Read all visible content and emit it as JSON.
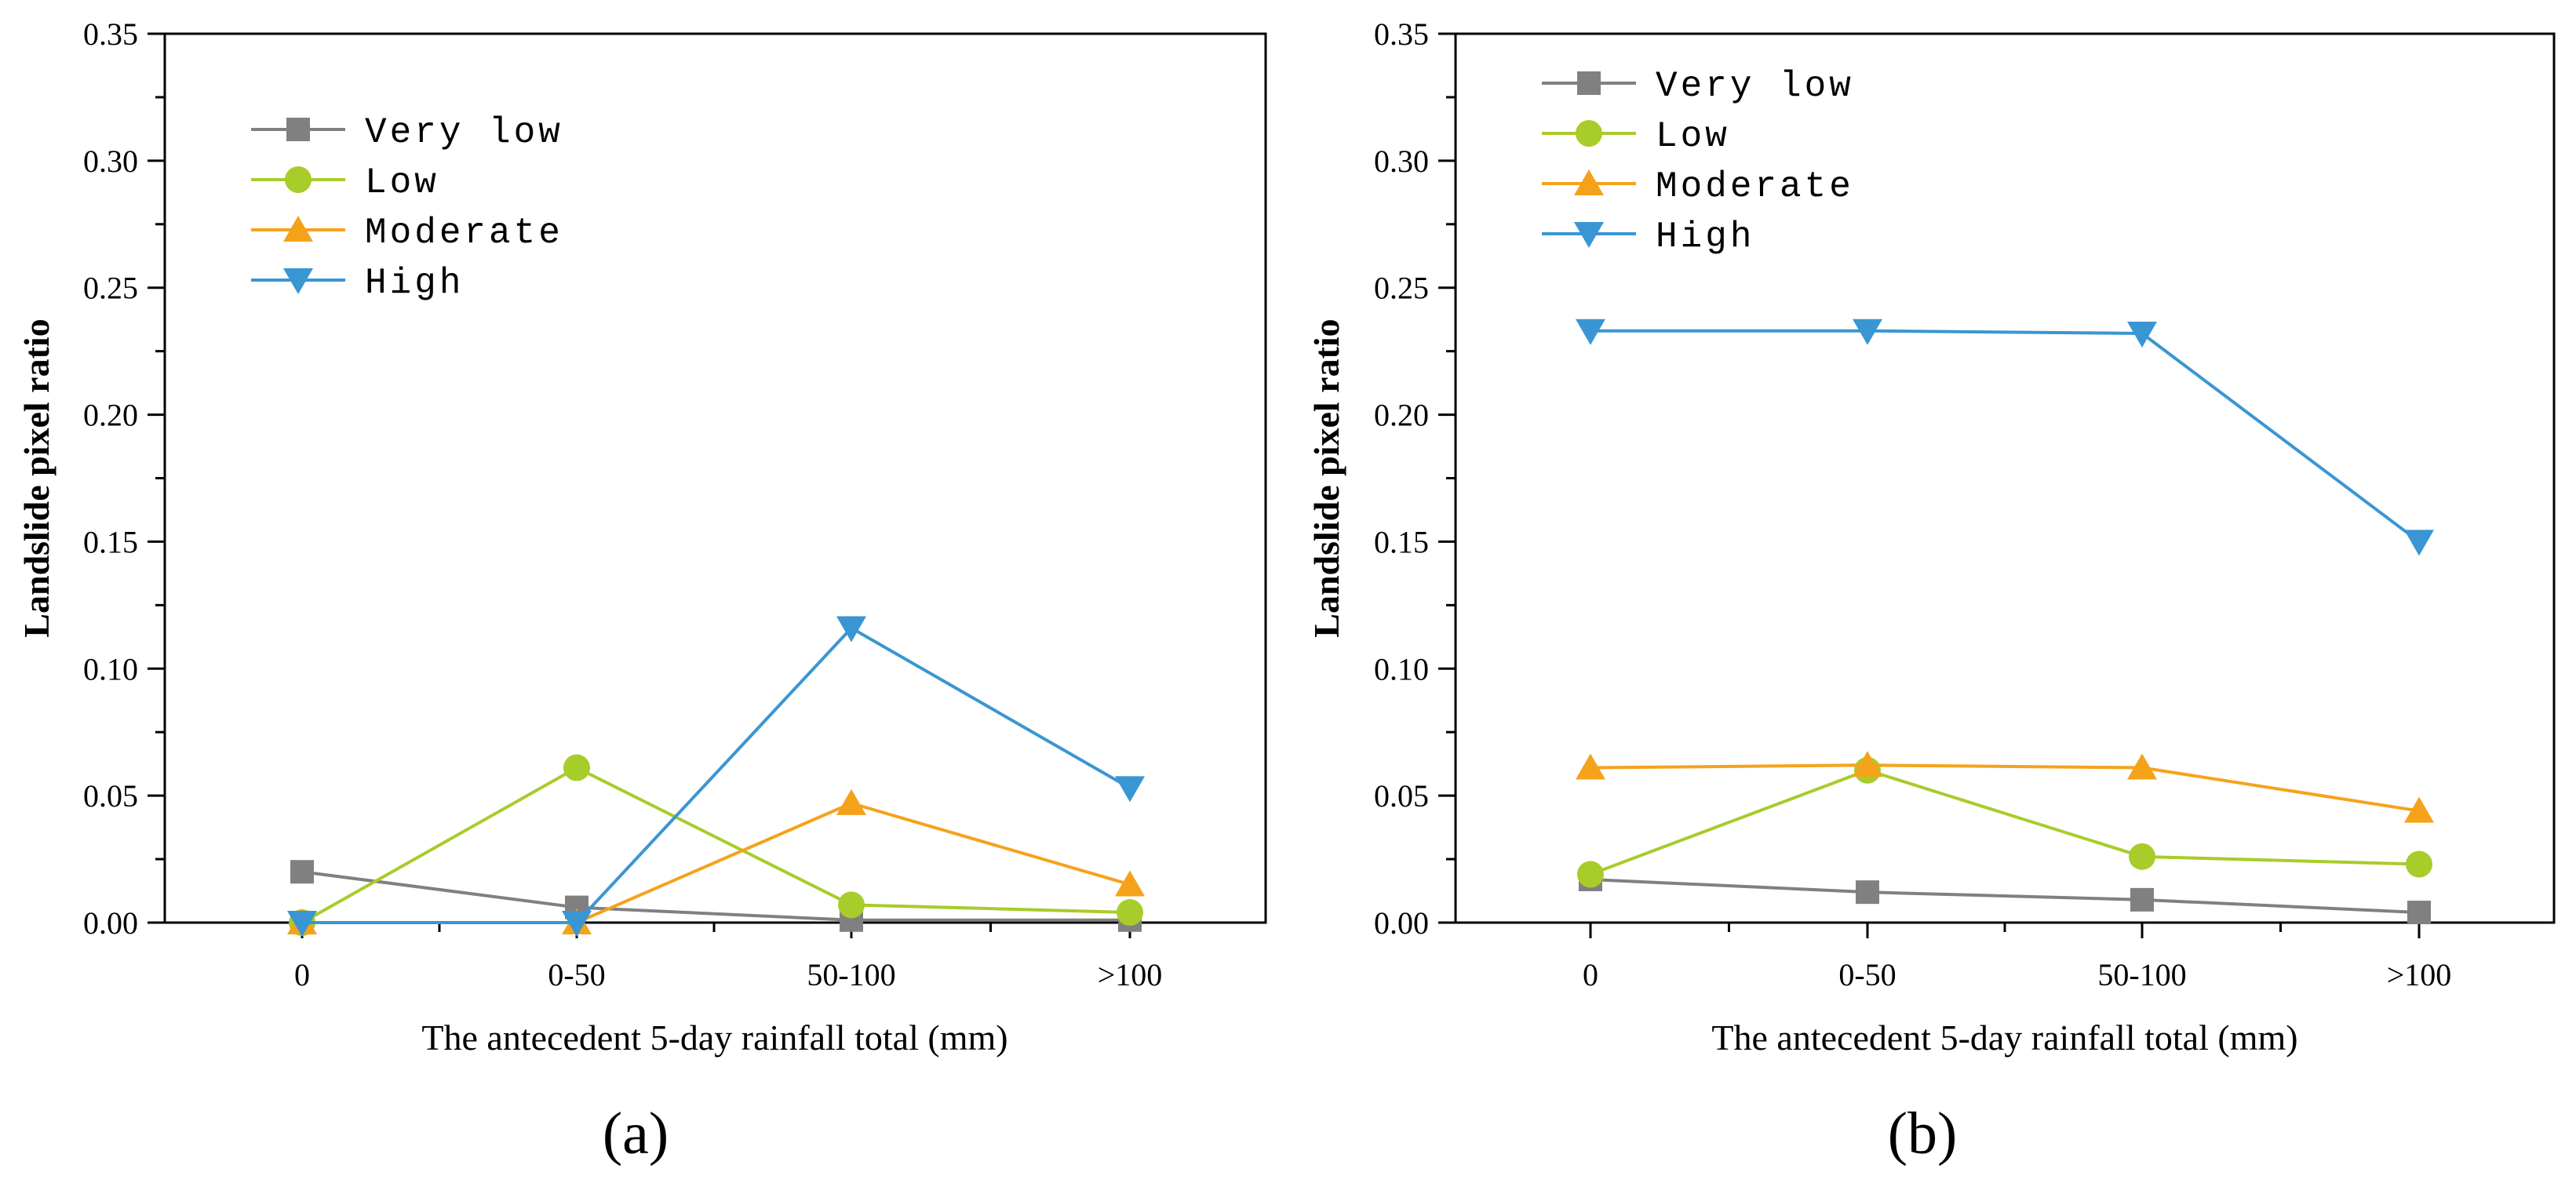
{
  "chart_data": [
    {
      "type": "line",
      "panel_label": "(a)",
      "categories": [
        "0",
        "0-50",
        "50-100",
        ">100"
      ],
      "xlabel": "The antecedent 5-day rainfall total (mm)",
      "ylabel": "Landslide pixel ratio",
      "ylim": [
        0,
        0.35
      ],
      "yticks": [
        "0.00",
        "0.05",
        "0.10",
        "0.15",
        "0.20",
        "0.25",
        "0.30",
        "0.35"
      ],
      "legend_position": "upper-left",
      "series": [
        {
          "name": "Very low",
          "color": "#808080",
          "marker": "square",
          "values": [
            0.02,
            0.006,
            0.001,
            0.001
          ]
        },
        {
          "name": "Low",
          "color": "#a8cc2a",
          "marker": "circle",
          "values": [
            0.0,
            0.061,
            0.007,
            0.004
          ]
        },
        {
          "name": "Moderate",
          "color": "#f5a21b",
          "marker": "triangle-up",
          "values": [
            0.0,
            0.0,
            0.047,
            0.015
          ]
        },
        {
          "name": "High",
          "color": "#3a96d2",
          "marker": "triangle-down",
          "values": [
            0.0,
            0.0,
            0.116,
            0.053
          ]
        }
      ]
    },
    {
      "type": "line",
      "panel_label": "(b)",
      "categories": [
        "0",
        "0-50",
        "50-100",
        ">100"
      ],
      "xlabel": "The antecedent 5-day rainfall total (mm)",
      "ylabel": "Landslide pixel ratio",
      "ylim": [
        0,
        0.35
      ],
      "yticks": [
        "0.00",
        "0.05",
        "0.10",
        "0.15",
        "0.20",
        "0.25",
        "0.30",
        "0.35"
      ],
      "legend_position": "upper-left",
      "series": [
        {
          "name": "Very low",
          "color": "#808080",
          "marker": "square",
          "values": [
            0.017,
            0.012,
            0.009,
            0.004
          ]
        },
        {
          "name": "Low",
          "color": "#a8cc2a",
          "marker": "circle",
          "values": [
            0.019,
            0.06,
            0.026,
            0.023
          ]
        },
        {
          "name": "Moderate",
          "color": "#f5a21b",
          "marker": "triangle-up",
          "values": [
            0.061,
            0.062,
            0.061,
            0.044
          ]
        },
        {
          "name": "High",
          "color": "#3a96d2",
          "marker": "triangle-down",
          "values": [
            0.233,
            0.233,
            0.232,
            0.15
          ]
        }
      ]
    }
  ]
}
